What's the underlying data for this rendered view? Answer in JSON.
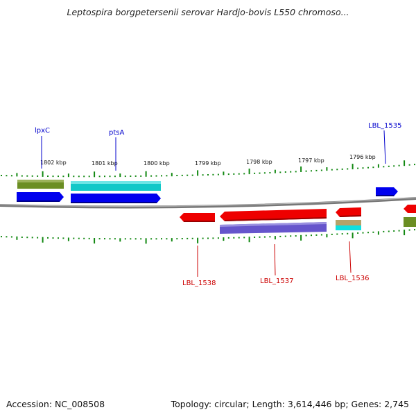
{
  "title": "Leptospira borgpetersenii serovar Hardjo-bovis L550 chromoso...",
  "footer": {
    "accession": "Accession: NC_008508",
    "topology": "Topology: circular; Length: 3,614,446 bp; Genes: 2,745"
  },
  "ruler_labels": [
    "1802 kbp",
    "1801 kbp",
    "1800 kbp",
    "1799 kbp",
    "1798 kbp",
    "1797 kbp",
    "1796 kbp"
  ],
  "gene_labels": {
    "lpxC": "lpxC",
    "ptsA": "ptsA",
    "lbl1535": "LBL_1535",
    "lbl1538": "LBL_1538",
    "lbl1537": "LBL_1537",
    "lbl1536": "LBL_1536"
  },
  "colors": {
    "cds": "#0000ee",
    "cds_reverse": "#ee0000",
    "go_cyan": "#11cccc",
    "go_olive": "#6b8e23",
    "go_purple": "#6655cc",
    "go_khaki": "#b5a36a",
    "tick": "#118811",
    "backbone": "#888888",
    "label_forward": "#0000cc",
    "label_reverse": "#cc0000"
  }
}
